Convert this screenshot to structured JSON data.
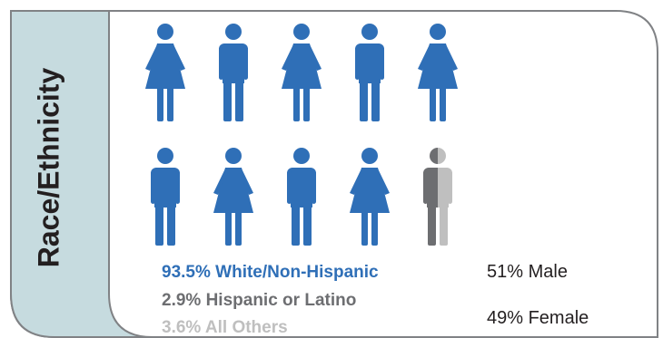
{
  "title": "Race/Ethnicity",
  "colors": {
    "white_non_hispanic": "#2f6fb7",
    "hispanic_or_latino": "#6d6e71",
    "all_others": "#bfbfbf",
    "side_panel": "#c6dbdf",
    "border": "#808285"
  },
  "chart_data": {
    "type": "pictogram",
    "title": "Race/Ethnicity",
    "icons_total": 10,
    "icon_sequence": [
      "female",
      "male",
      "female",
      "male",
      "female",
      "male",
      "female",
      "male",
      "female",
      "male"
    ],
    "series": [
      {
        "name": "White/Non-Hispanic",
        "value": 93.5,
        "label": "93.5% White/Non-Hispanic",
        "color": "#2f6fb7"
      },
      {
        "name": "Hispanic or Latino",
        "value": 2.9,
        "label": "2.9% Hispanic or Latino",
        "color": "#6d6e71"
      },
      {
        "name": "All Others",
        "value": 3.6,
        "label": "3.6% All Others",
        "color": "#bfbfbf"
      }
    ],
    "gender": [
      {
        "name": "Male",
        "value": 51,
        "label": "51% Male"
      },
      {
        "name": "Female",
        "value": 49,
        "label": "49% Female"
      }
    ]
  }
}
